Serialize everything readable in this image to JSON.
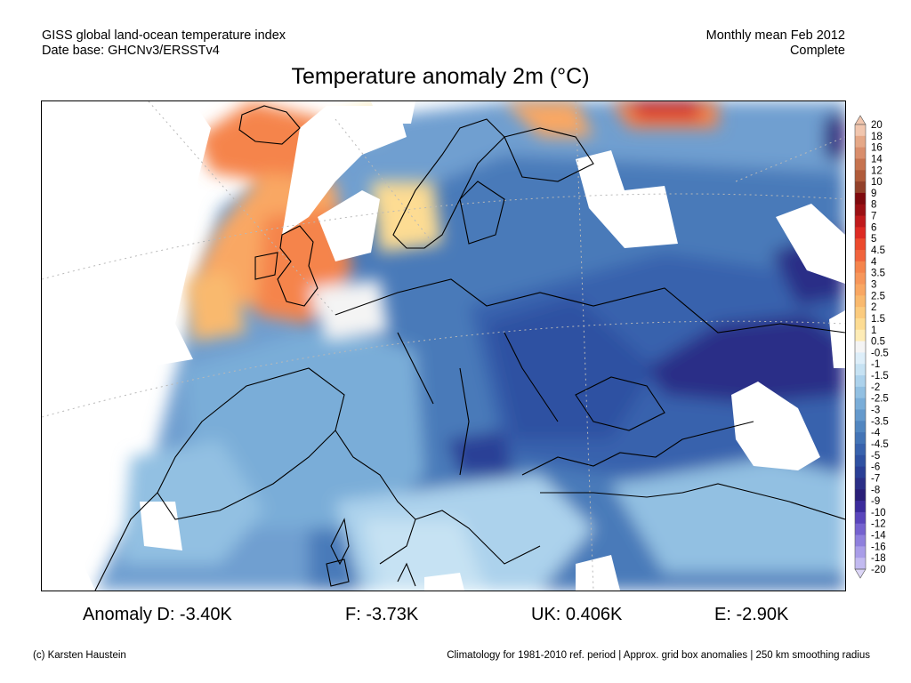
{
  "header": {
    "left_line1": "GISS global land-ocean temperature index",
    "left_line2": "Date base: GHCNv3/ERSSTv4",
    "right_line1": "Monthly mean Feb 2012",
    "right_line2": "Complete"
  },
  "title": "Temperature anomaly 2m (°C)",
  "colors": {
    "frame": "#000000",
    "missing": "#ffffff",
    "coast": "#000000"
  },
  "legend": {
    "entries": [
      {
        "label": "20",
        "color": "#f1c6ae"
      },
      {
        "label": "18",
        "color": "#e5a887"
      },
      {
        "label": "16",
        "color": "#d98e6c"
      },
      {
        "label": "14",
        "color": "#c6734f"
      },
      {
        "label": "12",
        "color": "#b05b3a"
      },
      {
        "label": "10",
        "color": "#93412a"
      },
      {
        "label": "9",
        "color": "#7f0a0e"
      },
      {
        "label": "8",
        "color": "#9b1014"
      },
      {
        "label": "7",
        "color": "#c01a1c"
      },
      {
        "label": "6",
        "color": "#dd2a23"
      },
      {
        "label": "5",
        "color": "#ec4a2d"
      },
      {
        "label": "4.5",
        "color": "#f1643d"
      },
      {
        "label": "4",
        "color": "#f5844c"
      },
      {
        "label": "3.5",
        "color": "#f7965a"
      },
      {
        "label": "3",
        "color": "#f9a763"
      },
      {
        "label": "2.5",
        "color": "#f9b96e"
      },
      {
        "label": "2",
        "color": "#fbcb7e"
      },
      {
        "label": "1.5",
        "color": "#fddc93"
      },
      {
        "label": "1",
        "color": "#feecb6"
      },
      {
        "label": "0.5",
        "color": "#f4f4f4"
      },
      {
        "label": "-0.5",
        "color": "#ddeef9"
      },
      {
        "label": "-1",
        "color": "#c6e2f3"
      },
      {
        "label": "-1.5",
        "color": "#acd2ec"
      },
      {
        "label": "-2",
        "color": "#92c0e2"
      },
      {
        "label": "-2.5",
        "color": "#7aadd8"
      },
      {
        "label": "-3",
        "color": "#6499cc"
      },
      {
        "label": "-3.5",
        "color": "#5186c0"
      },
      {
        "label": "-4",
        "color": "#4374b6"
      },
      {
        "label": "-4.5",
        "color": "#3862ad"
      },
      {
        "label": "-5",
        "color": "#2f51a2"
      },
      {
        "label": "-6",
        "color": "#2a3f96"
      },
      {
        "label": "-7",
        "color": "#2b2f87"
      },
      {
        "label": "-8",
        "color": "#2a1f78"
      },
      {
        "label": "-9",
        "color": "#3b2b9c"
      },
      {
        "label": "-10",
        "color": "#5a45bc"
      },
      {
        "label": "-12",
        "color": "#7562cf"
      },
      {
        "label": "-14",
        "color": "#8f80dd"
      },
      {
        "label": "-16",
        "color": "#a99de8"
      },
      {
        "label": "-18",
        "color": "#c2baf0"
      },
      {
        "label": "-20",
        "color": "#dcd6f7"
      }
    ]
  },
  "stats": {
    "d": "Anomaly D: -3.40K",
    "f": "F: -3.73K",
    "uk": "UK: 0.406K",
    "e": "E: -2.90K"
  },
  "footer": {
    "left": "(c) Karsten Haustein",
    "right": "Climatology for 1981-2010 ref. period | Approx. grid box anomalies | 250 km smoothing radius"
  }
}
